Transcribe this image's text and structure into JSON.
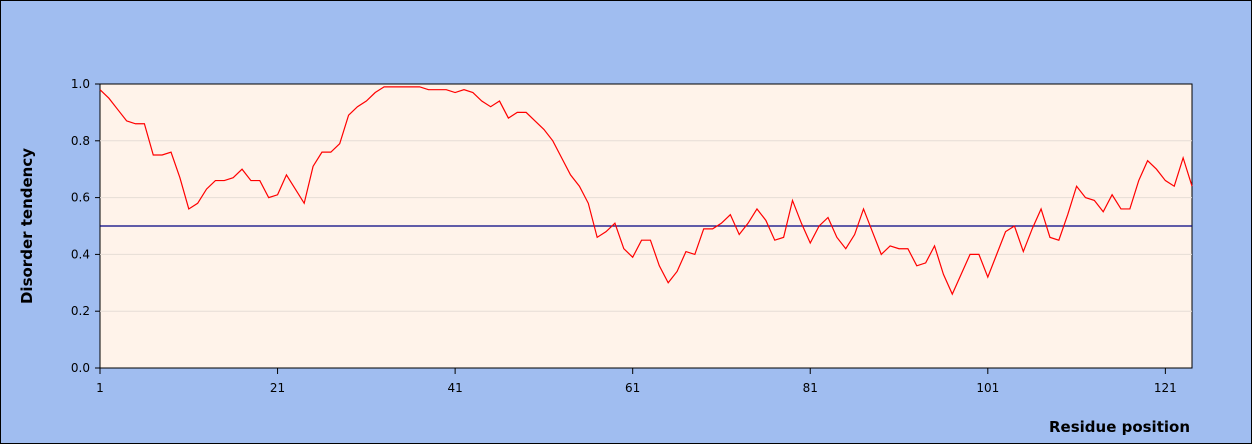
{
  "chart_data": {
    "type": "line",
    "x_label": "Residue position",
    "y_label": "Disorder tendency",
    "x": [
      1,
      2,
      3,
      4,
      5,
      6,
      7,
      8,
      9,
      10,
      11,
      12,
      13,
      14,
      15,
      16,
      17,
      18,
      19,
      20,
      21,
      22,
      23,
      24,
      25,
      26,
      27,
      28,
      29,
      30,
      31,
      32,
      33,
      34,
      35,
      36,
      37,
      38,
      39,
      40,
      41,
      42,
      43,
      44,
      45,
      46,
      47,
      48,
      49,
      50,
      51,
      52,
      53,
      54,
      55,
      56,
      57,
      58,
      59,
      60,
      61,
      62,
      63,
      64,
      65,
      66,
      67,
      68,
      69,
      70,
      71,
      72,
      73,
      74,
      75,
      76,
      77,
      78,
      79,
      80,
      81,
      82,
      83,
      84,
      85,
      86,
      87,
      88,
      89,
      90,
      91,
      92,
      93,
      94,
      95,
      96,
      97,
      98,
      99,
      100,
      101,
      102,
      103,
      104,
      105,
      106,
      107,
      108,
      109,
      110,
      111,
      112,
      113,
      114,
      115,
      116,
      117,
      118,
      119,
      120,
      121,
      122,
      123,
      124
    ],
    "series": [
      {
        "color": "#ff0000",
        "values": [
          0.98,
          0.95,
          0.91,
          0.87,
          0.86,
          0.86,
          0.75,
          0.75,
          0.76,
          0.67,
          0.56,
          0.58,
          0.63,
          0.66,
          0.66,
          0.67,
          0.7,
          0.66,
          0.66,
          0.6,
          0.61,
          0.68,
          0.63,
          0.58,
          0.71,
          0.76,
          0.76,
          0.79,
          0.89,
          0.92,
          0.94,
          0.97,
          0.99,
          0.99,
          0.99,
          0.99,
          0.99,
          0.98,
          0.98,
          0.98,
          0.97,
          0.98,
          0.97,
          0.94,
          0.92,
          0.94,
          0.88,
          0.9,
          0.9,
          0.87,
          0.84,
          0.8,
          0.74,
          0.68,
          0.64,
          0.58,
          0.46,
          0.48,
          0.51,
          0.42,
          0.39,
          0.45,
          0.45,
          0.36,
          0.3,
          0.34,
          0.41,
          0.4,
          0.49,
          0.49,
          0.51,
          0.54,
          0.47,
          0.51,
          0.56,
          0.52,
          0.45,
          0.46,
          0.59,
          0.51,
          0.44,
          0.5,
          0.53,
          0.46,
          0.42,
          0.47,
          0.56,
          0.48,
          0.4,
          0.43,
          0.42,
          0.42,
          0.36,
          0.37,
          0.43,
          0.33,
          0.26,
          0.33,
          0.4,
          0.4,
          0.32,
          0.4,
          0.48,
          0.5,
          0.41,
          0.49,
          0.56,
          0.46,
          0.45,
          0.54,
          0.64,
          0.6,
          0.59,
          0.55,
          0.61,
          0.56,
          0.56,
          0.66,
          0.73,
          0.7,
          0.66,
          0.64,
          0.74,
          0.64
        ]
      }
    ],
    "reference_line": 0.5,
    "reference_color": "#000080",
    "xlim": [
      1,
      124
    ],
    "xticks": [
      1,
      21,
      41,
      61,
      81,
      101,
      121
    ],
    "ylim": [
      0,
      1
    ],
    "yticks": [
      {
        "value": 0,
        "label": "0.0"
      },
      0.2,
      0.4,
      0.6,
      0.8,
      {
        "value": 1,
        "label": "1.0"
      }
    ],
    "grid": true
  }
}
